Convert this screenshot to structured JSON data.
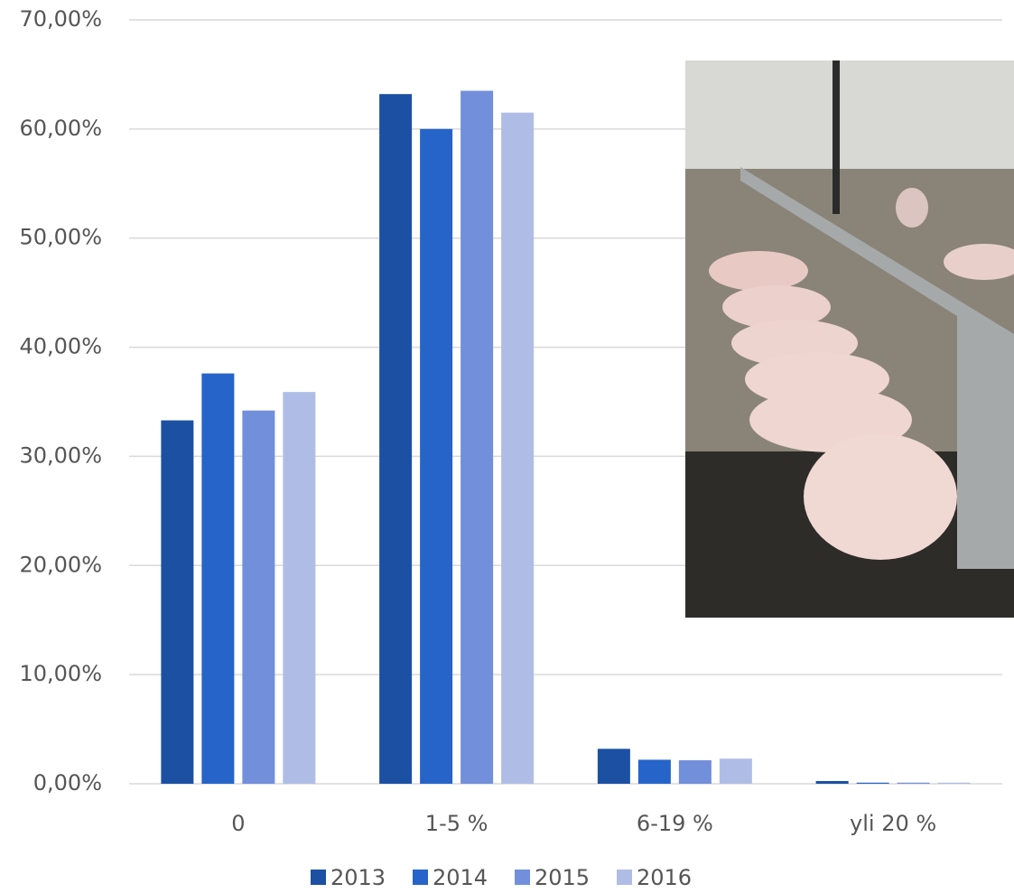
{
  "chart_data": {
    "type": "bar",
    "categories": [
      "0",
      "1-5 %",
      "6-19 %",
      "yli 20 %"
    ],
    "series": [
      {
        "name": "2013",
        "color": "#1c50a3",
        "values": [
          33.3,
          63.2,
          3.2,
          0.25
        ]
      },
      {
        "name": "2014",
        "color": "#2664c9",
        "values": [
          37.6,
          60.0,
          2.2,
          0.1
        ]
      },
      {
        "name": "2015",
        "color": "#728fdc",
        "values": [
          34.2,
          63.5,
          2.15,
          0.1
        ]
      },
      {
        "name": "2016",
        "color": "#afbde6",
        "values": [
          35.9,
          61.5,
          2.3,
          0.1
        ]
      }
    ],
    "ylim": [
      0,
      70
    ],
    "yticks": [
      {
        "value": 0,
        "label": "0,00%"
      },
      {
        "value": 10,
        "label": "10,00%"
      },
      {
        "value": 20,
        "label": "20,00%"
      },
      {
        "value": 30,
        "label": "30,00%"
      },
      {
        "value": 40,
        "label": "40,00%"
      },
      {
        "value": 50,
        "label": "50,00%"
      },
      {
        "value": 60,
        "label": "60,00%"
      },
      {
        "value": 70,
        "label": "70,00%"
      }
    ],
    "grid": true,
    "legend": "bottom"
  }
}
